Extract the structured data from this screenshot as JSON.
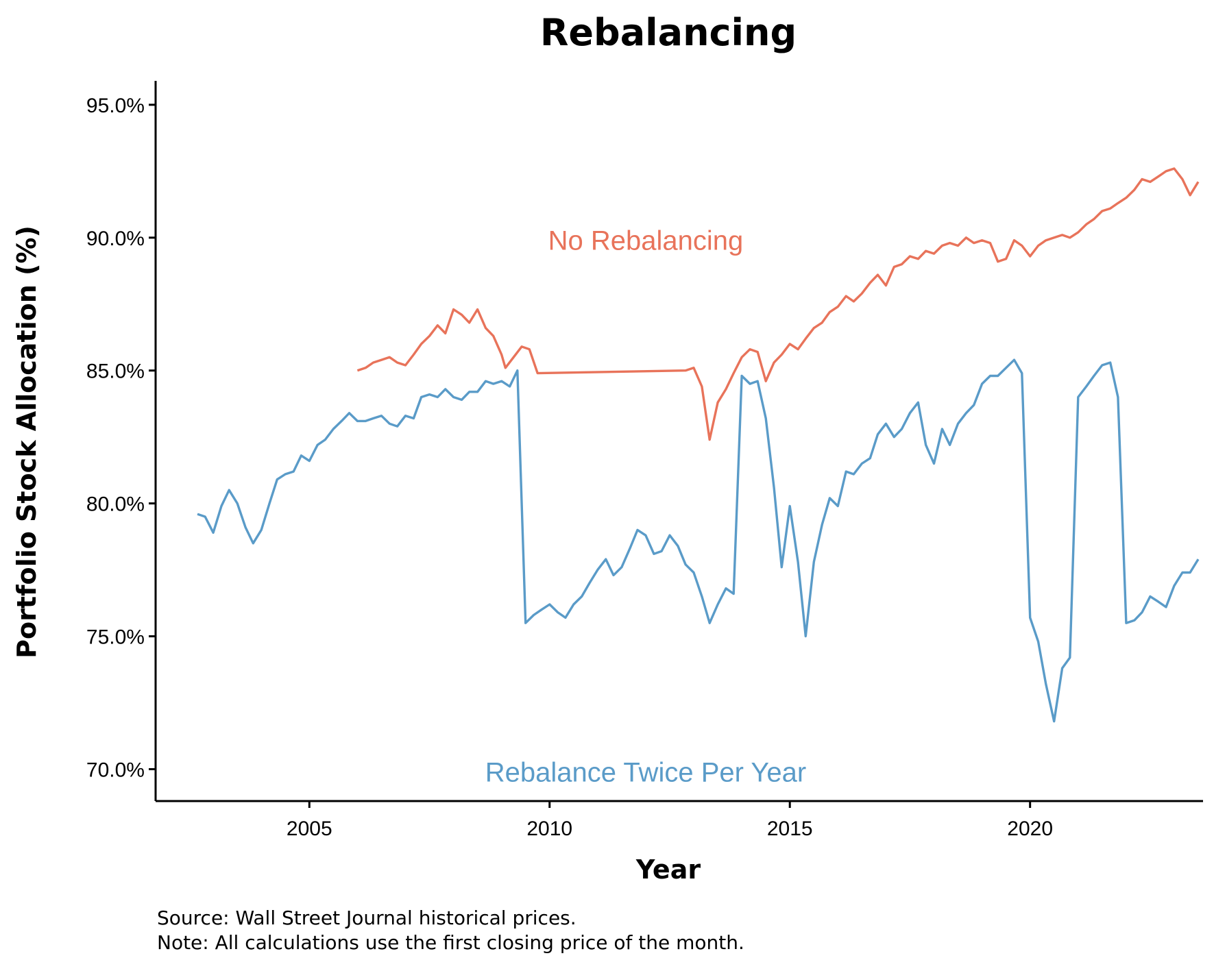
{
  "chart_data": {
    "type": "line",
    "title": "Rebalancing",
    "xlabel": "Year",
    "ylabel": "Portfolio Stock Allocation (%)",
    "xlim": [
      2001.8,
      2023.6
    ],
    "ylim": [
      68.8,
      95.9
    ],
    "x_ticks": [
      2005,
      2010,
      2015,
      2020
    ],
    "x_tick_labels": [
      "2005",
      "2010",
      "2015",
      "2020"
    ],
    "y_ticks": [
      70,
      75,
      80,
      85,
      90,
      95
    ],
    "y_tick_labels": [
      "70.0%",
      "75.0%",
      "80.0%",
      "85.0%",
      "90.0%",
      "95.0%"
    ],
    "grid": false,
    "legend": "none (series labelled directly on plot)",
    "series": [
      {
        "name": "No Rebalancing",
        "color": "#e8735a",
        "label_anchor": {
          "x": 2012.0,
          "y": 89.9
        },
        "points": [
          [
            2006.0,
            85.0
          ],
          [
            2006.17,
            85.1
          ],
          [
            2006.33,
            85.3
          ],
          [
            2006.5,
            85.4
          ],
          [
            2006.67,
            85.5
          ],
          [
            2006.83,
            85.3
          ],
          [
            2007.0,
            85.2
          ],
          [
            2007.17,
            85.6
          ],
          [
            2007.33,
            86.0
          ],
          [
            2007.5,
            86.3
          ],
          [
            2007.67,
            86.7
          ],
          [
            2007.83,
            86.4
          ],
          [
            2008.0,
            87.3
          ],
          [
            2008.17,
            87.1
          ],
          [
            2008.33,
            86.8
          ],
          [
            2008.5,
            87.3
          ],
          [
            2008.67,
            86.6
          ],
          [
            2008.83,
            86.3
          ],
          [
            2009.0,
            85.6
          ],
          [
            2009.08,
            85.1
          ],
          [
            2009.25,
            85.5
          ],
          [
            2009.42,
            85.9
          ],
          [
            2009.58,
            85.8
          ],
          [
            2009.75,
            84.9
          ],
          [
            2012.83,
            85.0
          ],
          [
            2013.0,
            85.1
          ],
          [
            2013.17,
            84.4
          ],
          [
            2013.33,
            82.4
          ],
          [
            2013.5,
            83.8
          ],
          [
            2013.67,
            84.3
          ],
          [
            2013.83,
            84.9
          ],
          [
            2014.0,
            85.5
          ],
          [
            2014.17,
            85.8
          ],
          [
            2014.33,
            85.7
          ],
          [
            2014.5,
            84.6
          ],
          [
            2014.67,
            85.3
          ],
          [
            2014.83,
            85.6
          ],
          [
            2015.0,
            86.0
          ],
          [
            2015.17,
            85.8
          ],
          [
            2015.33,
            86.2
          ],
          [
            2015.5,
            86.6
          ],
          [
            2015.67,
            86.8
          ],
          [
            2015.83,
            87.2
          ],
          [
            2016.0,
            87.4
          ],
          [
            2016.17,
            87.8
          ],
          [
            2016.33,
            87.6
          ],
          [
            2016.5,
            87.9
          ],
          [
            2016.67,
            88.3
          ],
          [
            2016.83,
            88.6
          ],
          [
            2017.0,
            88.2
          ],
          [
            2017.17,
            88.9
          ],
          [
            2017.33,
            89.0
          ],
          [
            2017.5,
            89.3
          ],
          [
            2017.67,
            89.2
          ],
          [
            2017.83,
            89.5
          ],
          [
            2018.0,
            89.4
          ],
          [
            2018.17,
            89.7
          ],
          [
            2018.33,
            89.8
          ],
          [
            2018.5,
            89.7
          ],
          [
            2018.67,
            90.0
          ],
          [
            2018.83,
            89.8
          ],
          [
            2019.0,
            89.9
          ],
          [
            2019.17,
            89.8
          ],
          [
            2019.33,
            89.1
          ],
          [
            2019.5,
            89.2
          ],
          [
            2019.67,
            89.9
          ],
          [
            2019.83,
            89.7
          ],
          [
            2020.0,
            89.3
          ],
          [
            2020.17,
            89.7
          ],
          [
            2020.33,
            89.9
          ],
          [
            2020.5,
            90.0
          ],
          [
            2020.67,
            90.1
          ],
          [
            2020.83,
            90.0
          ],
          [
            2021.0,
            90.2
          ],
          [
            2021.17,
            90.5
          ],
          [
            2021.33,
            90.7
          ],
          [
            2021.5,
            91.0
          ],
          [
            2021.67,
            91.1
          ],
          [
            2021.83,
            91.3
          ],
          [
            2022.0,
            91.5
          ],
          [
            2022.17,
            91.8
          ],
          [
            2022.33,
            92.2
          ],
          [
            2022.5,
            92.1
          ],
          [
            2022.67,
            92.3
          ],
          [
            2022.83,
            92.5
          ],
          [
            2023.0,
            92.6
          ],
          [
            2023.17,
            92.2
          ],
          [
            2023.33,
            91.6
          ],
          [
            2023.5,
            92.1
          ]
        ]
      },
      {
        "name": "Rebalance Twice Per Year",
        "color": "#5a9bc8",
        "label_anchor": {
          "x": 2012.0,
          "y": 69.9
        },
        "points": [
          [
            2002.67,
            79.6
          ],
          [
            2002.83,
            79.5
          ],
          [
            2003.0,
            78.9
          ],
          [
            2003.17,
            79.9
          ],
          [
            2003.33,
            80.5
          ],
          [
            2003.5,
            80.0
          ],
          [
            2003.67,
            79.1
          ],
          [
            2003.83,
            78.5
          ],
          [
            2004.0,
            79.0
          ],
          [
            2004.17,
            80.0
          ],
          [
            2004.33,
            80.9
          ],
          [
            2004.5,
            81.1
          ],
          [
            2004.67,
            81.2
          ],
          [
            2004.83,
            81.8
          ],
          [
            2005.0,
            81.6
          ],
          [
            2005.17,
            82.2
          ],
          [
            2005.33,
            82.4
          ],
          [
            2005.5,
            82.8
          ],
          [
            2005.67,
            83.1
          ],
          [
            2005.83,
            83.4
          ],
          [
            2006.0,
            83.1
          ],
          [
            2006.17,
            83.1
          ],
          [
            2006.33,
            83.2
          ],
          [
            2006.5,
            83.3
          ],
          [
            2006.67,
            83.0
          ],
          [
            2006.83,
            82.9
          ],
          [
            2007.0,
            83.3
          ],
          [
            2007.17,
            83.2
          ],
          [
            2007.33,
            84.0
          ],
          [
            2007.5,
            84.1
          ],
          [
            2007.67,
            84.0
          ],
          [
            2007.83,
            84.3
          ],
          [
            2008.0,
            84.0
          ],
          [
            2008.17,
            83.9
          ],
          [
            2008.33,
            84.2
          ],
          [
            2008.5,
            84.2
          ],
          [
            2008.67,
            84.6
          ],
          [
            2008.83,
            84.5
          ],
          [
            2009.0,
            84.6
          ],
          [
            2009.17,
            84.4
          ],
          [
            2009.33,
            85.0
          ],
          [
            2009.5,
            75.5
          ],
          [
            2009.67,
            75.8
          ],
          [
            2009.83,
            76.0
          ],
          [
            2010.0,
            76.2
          ],
          [
            2010.17,
            75.9
          ],
          [
            2010.33,
            75.7
          ],
          [
            2010.5,
            76.2
          ],
          [
            2010.67,
            76.5
          ],
          [
            2010.83,
            77.0
          ],
          [
            2011.0,
            77.5
          ],
          [
            2011.17,
            77.9
          ],
          [
            2011.33,
            77.3
          ],
          [
            2011.5,
            77.6
          ],
          [
            2011.67,
            78.3
          ],
          [
            2011.83,
            79.0
          ],
          [
            2012.0,
            78.8
          ],
          [
            2012.17,
            78.1
          ],
          [
            2012.33,
            78.2
          ],
          [
            2012.5,
            78.8
          ],
          [
            2012.67,
            78.4
          ],
          [
            2012.83,
            77.7
          ],
          [
            2013.0,
            77.4
          ],
          [
            2013.17,
            76.5
          ],
          [
            2013.33,
            75.5
          ],
          [
            2013.5,
            76.2
          ],
          [
            2013.67,
            76.8
          ],
          [
            2013.83,
            76.6
          ],
          [
            2014.0,
            84.8
          ],
          [
            2014.17,
            84.5
          ],
          [
            2014.33,
            84.6
          ],
          [
            2014.5,
            83.2
          ],
          [
            2014.67,
            80.6
          ],
          [
            2014.83,
            77.6
          ],
          [
            2015.0,
            79.9
          ],
          [
            2015.17,
            77.8
          ],
          [
            2015.33,
            75.0
          ],
          [
            2015.5,
            77.8
          ],
          [
            2015.67,
            79.2
          ],
          [
            2015.83,
            80.2
          ],
          [
            2016.0,
            79.9
          ],
          [
            2016.17,
            81.2
          ],
          [
            2016.33,
            81.1
          ],
          [
            2016.5,
            81.5
          ],
          [
            2016.67,
            81.7
          ],
          [
            2016.83,
            82.6
          ],
          [
            2017.0,
            83.0
          ],
          [
            2017.17,
            82.5
          ],
          [
            2017.33,
            82.8
          ],
          [
            2017.5,
            83.4
          ],
          [
            2017.67,
            83.8
          ],
          [
            2017.83,
            82.2
          ],
          [
            2018.0,
            81.5
          ],
          [
            2018.17,
            82.8
          ],
          [
            2018.33,
            82.2
          ],
          [
            2018.5,
            83.0
          ],
          [
            2018.67,
            83.4
          ],
          [
            2018.83,
            83.7
          ],
          [
            2019.0,
            84.5
          ],
          [
            2019.17,
            84.8
          ],
          [
            2019.33,
            84.8
          ],
          [
            2019.5,
            85.1
          ],
          [
            2019.67,
            85.4
          ],
          [
            2019.83,
            84.9
          ],
          [
            2020.0,
            75.7
          ],
          [
            2020.17,
            74.8
          ],
          [
            2020.33,
            73.2
          ],
          [
            2020.5,
            71.8
          ],
          [
            2020.67,
            73.8
          ],
          [
            2020.83,
            74.2
          ],
          [
            2021.0,
            84.0
          ],
          [
            2021.17,
            84.4
          ],
          [
            2021.33,
            84.8
          ],
          [
            2021.5,
            85.2
          ],
          [
            2021.67,
            85.3
          ],
          [
            2021.83,
            84.0
          ],
          [
            2022.0,
            75.5
          ],
          [
            2022.17,
            75.6
          ],
          [
            2022.33,
            75.9
          ],
          [
            2022.5,
            76.5
          ],
          [
            2022.67,
            76.3
          ],
          [
            2022.83,
            76.1
          ],
          [
            2023.0,
            76.9
          ],
          [
            2023.17,
            77.4
          ],
          [
            2023.33,
            77.4
          ],
          [
            2023.5,
            77.9
          ]
        ]
      }
    ]
  },
  "caption": {
    "source": "Source: Wall Street Journal historical prices.",
    "note": "Note: All calculations use the first closing price of the month."
  }
}
